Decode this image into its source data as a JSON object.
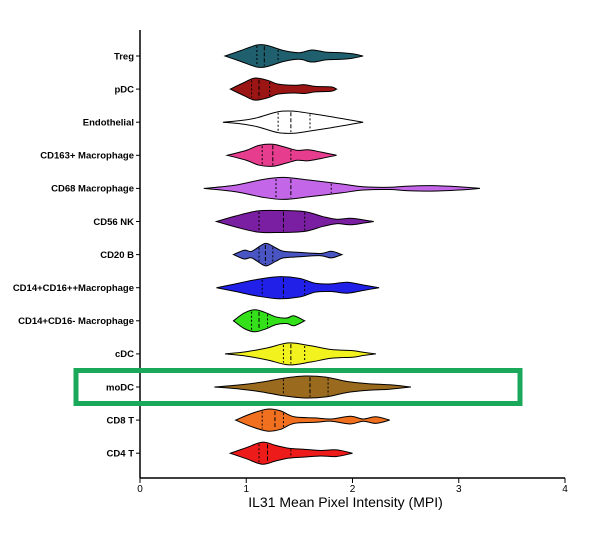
{
  "chart_data": {
    "type": "violin",
    "orientation": "horizontal",
    "xlabel": "IL31 Mean Pixel Intensity (MPI)",
    "ylabel": "",
    "title": "",
    "xlim": [
      0,
      4
    ],
    "x_ticks": [
      "0",
      "1",
      "2",
      "3",
      "4"
    ],
    "grid": false,
    "legend": "none",
    "highlight": {
      "category": "moDC",
      "color": "#1aa85a"
    },
    "categories": [
      "Treg",
      "pDC",
      "Endothelial",
      "CD163+ Macrophage",
      "CD68 Macrophage",
      "CD56 NK",
      "CD20 B",
      "CD14+CD16++Macrophage",
      "CD14+CD16- Macrophage",
      "cDC",
      "moDC",
      "CD8 T",
      "CD4 T"
    ],
    "series": [
      {
        "category": "Treg",
        "color": "#1f5f6e",
        "min": 0.8,
        "max": 2.1,
        "q1": 1.1,
        "median": 1.17,
        "q3": 1.3,
        "density": [
          [
            0.8,
            0.1
          ],
          [
            0.95,
            0.5
          ],
          [
            1.1,
            1.0
          ],
          [
            1.2,
            0.95
          ],
          [
            1.35,
            0.5
          ],
          [
            1.5,
            0.3
          ],
          [
            1.62,
            0.55
          ],
          [
            1.75,
            0.35
          ],
          [
            1.9,
            0.3
          ],
          [
            2.0,
            0.2
          ],
          [
            2.1,
            0.05
          ]
        ]
      },
      {
        "category": "pDC",
        "color": "#9b1515",
        "min": 0.85,
        "max": 1.85,
        "q1": 1.05,
        "median": 1.12,
        "q3": 1.22,
        "density": [
          [
            0.85,
            0.1
          ],
          [
            0.98,
            0.6
          ],
          [
            1.08,
            1.0
          ],
          [
            1.2,
            0.8
          ],
          [
            1.3,
            0.45
          ],
          [
            1.45,
            0.35
          ],
          [
            1.55,
            0.4
          ],
          [
            1.65,
            0.25
          ],
          [
            1.8,
            0.2
          ],
          [
            1.85,
            0.05
          ]
        ]
      },
      {
        "category": "Endothelial",
        "color": "#ffffff",
        "min": 0.78,
        "max": 2.1,
        "q1": 1.3,
        "median": 1.42,
        "q3": 1.6,
        "density": [
          [
            0.78,
            0.05
          ],
          [
            0.95,
            0.15
          ],
          [
            1.1,
            0.4
          ],
          [
            1.3,
            0.95
          ],
          [
            1.45,
            1.0
          ],
          [
            1.6,
            0.8
          ],
          [
            1.8,
            0.5
          ],
          [
            1.95,
            0.25
          ],
          [
            2.1,
            0.05
          ]
        ]
      },
      {
        "category": "CD163+ Macrophage",
        "color": "#e63d8e",
        "min": 0.82,
        "max": 1.85,
        "q1": 1.15,
        "median": 1.25,
        "q3": 1.42,
        "density": [
          [
            0.82,
            0.1
          ],
          [
            1.0,
            0.45
          ],
          [
            1.12,
            0.9
          ],
          [
            1.25,
            1.0
          ],
          [
            1.38,
            0.7
          ],
          [
            1.48,
            0.45
          ],
          [
            1.58,
            0.5
          ],
          [
            1.7,
            0.3
          ],
          [
            1.85,
            0.05
          ]
        ]
      },
      {
        "category": "CD68 Macrophage",
        "color": "#c466e8",
        "min": 0.6,
        "max": 3.2,
        "q1": 1.28,
        "median": 1.42,
        "q3": 1.8,
        "density": [
          [
            0.6,
            0.05
          ],
          [
            0.9,
            0.3
          ],
          [
            1.15,
            0.8
          ],
          [
            1.35,
            1.0
          ],
          [
            1.6,
            0.75
          ],
          [
            1.9,
            0.4
          ],
          [
            2.1,
            0.15
          ],
          [
            2.35,
            0.1
          ],
          [
            2.5,
            0.2
          ],
          [
            2.75,
            0.25
          ],
          [
            3.0,
            0.15
          ],
          [
            3.2,
            0.05
          ]
        ]
      },
      {
        "category": "CD56 NK",
        "color": "#7b1fa2",
        "min": 0.72,
        "max": 2.2,
        "q1": 1.12,
        "median": 1.35,
        "q3": 1.55,
        "density": [
          [
            0.72,
            0.05
          ],
          [
            0.9,
            0.5
          ],
          [
            1.1,
            0.95
          ],
          [
            1.3,
            1.0
          ],
          [
            1.55,
            0.9
          ],
          [
            1.72,
            0.45
          ],
          [
            1.85,
            0.2
          ],
          [
            1.98,
            0.3
          ],
          [
            2.1,
            0.15
          ],
          [
            2.2,
            0.05
          ]
        ]
      },
      {
        "category": "CD20 B",
        "color": "#4a55c4",
        "min": 0.88,
        "max": 1.9,
        "q1": 1.12,
        "median": 1.18,
        "q3": 1.25,
        "density": [
          [
            0.88,
            0.1
          ],
          [
            0.98,
            0.4
          ],
          [
            1.05,
            0.3
          ],
          [
            1.15,
            0.9
          ],
          [
            1.2,
            1.0
          ],
          [
            1.28,
            0.6
          ],
          [
            1.35,
            0.3
          ],
          [
            1.5,
            0.2
          ],
          [
            1.7,
            0.1
          ],
          [
            1.8,
            0.3
          ],
          [
            1.9,
            0.05
          ]
        ]
      },
      {
        "category": "CD14+CD16++Macrophage",
        "color": "#2020e8",
        "min": 0.72,
        "max": 2.25,
        "q1": 1.15,
        "median": 1.35,
        "q3": 1.55,
        "density": [
          [
            0.72,
            0.05
          ],
          [
            0.9,
            0.35
          ],
          [
            1.1,
            0.75
          ],
          [
            1.3,
            1.0
          ],
          [
            1.5,
            0.85
          ],
          [
            1.65,
            0.4
          ],
          [
            1.8,
            0.35
          ],
          [
            1.95,
            0.5
          ],
          [
            2.1,
            0.25
          ],
          [
            2.25,
            0.05
          ]
        ]
      },
      {
        "category": "CD14+CD16- Macrophage",
        "color": "#33e01a",
        "min": 0.88,
        "max": 1.55,
        "q1": 1.05,
        "median": 1.12,
        "q3": 1.2,
        "density": [
          [
            0.88,
            0.1
          ],
          [
            0.98,
            0.7
          ],
          [
            1.08,
            1.0
          ],
          [
            1.18,
            0.75
          ],
          [
            1.28,
            0.35
          ],
          [
            1.38,
            0.25
          ],
          [
            1.45,
            0.45
          ],
          [
            1.55,
            0.05
          ]
        ]
      },
      {
        "category": "cDC",
        "color": "#f2f21f",
        "min": 0.8,
        "max": 2.22,
        "q1": 1.35,
        "median": 1.42,
        "q3": 1.55,
        "density": [
          [
            0.8,
            0.05
          ],
          [
            1.0,
            0.2
          ],
          [
            1.2,
            0.55
          ],
          [
            1.4,
            1.0
          ],
          [
            1.6,
            0.75
          ],
          [
            1.8,
            0.4
          ],
          [
            2.0,
            0.3
          ],
          [
            2.1,
            0.15
          ],
          [
            2.22,
            0.05
          ]
        ]
      },
      {
        "category": "moDC",
        "color": "#9a6a1e",
        "min": 0.7,
        "max": 2.55,
        "q1": 1.35,
        "median": 1.6,
        "q3": 1.77,
        "density": [
          [
            0.7,
            0.05
          ],
          [
            0.95,
            0.2
          ],
          [
            1.15,
            0.45
          ],
          [
            1.35,
            0.8
          ],
          [
            1.55,
            1.0
          ],
          [
            1.75,
            0.9
          ],
          [
            1.95,
            0.5
          ],
          [
            2.15,
            0.3
          ],
          [
            2.35,
            0.2
          ],
          [
            2.55,
            0.05
          ]
        ]
      },
      {
        "category": "CD8 T",
        "color": "#f07020",
        "min": 0.9,
        "max": 2.35,
        "q1": 1.15,
        "median": 1.27,
        "q3": 1.35,
        "density": [
          [
            0.9,
            0.1
          ],
          [
            1.05,
            0.6
          ],
          [
            1.2,
            1.0
          ],
          [
            1.32,
            0.85
          ],
          [
            1.45,
            0.3
          ],
          [
            1.65,
            0.2
          ],
          [
            1.8,
            0.1
          ],
          [
            1.98,
            0.35
          ],
          [
            2.1,
            0.1
          ],
          [
            2.22,
            0.3
          ],
          [
            2.35,
            0.05
          ]
        ]
      },
      {
        "category": "CD4 T",
        "color": "#ee1b1b",
        "min": 0.85,
        "max": 2.0,
        "q1": 1.12,
        "median": 1.2,
        "q3": 1.42,
        "density": [
          [
            0.85,
            0.1
          ],
          [
            1.0,
            0.5
          ],
          [
            1.15,
            1.0
          ],
          [
            1.28,
            0.7
          ],
          [
            1.4,
            0.45
          ],
          [
            1.55,
            0.35
          ],
          [
            1.7,
            0.25
          ],
          [
            1.85,
            0.3
          ],
          [
            2.0,
            0.05
          ]
        ]
      }
    ]
  }
}
